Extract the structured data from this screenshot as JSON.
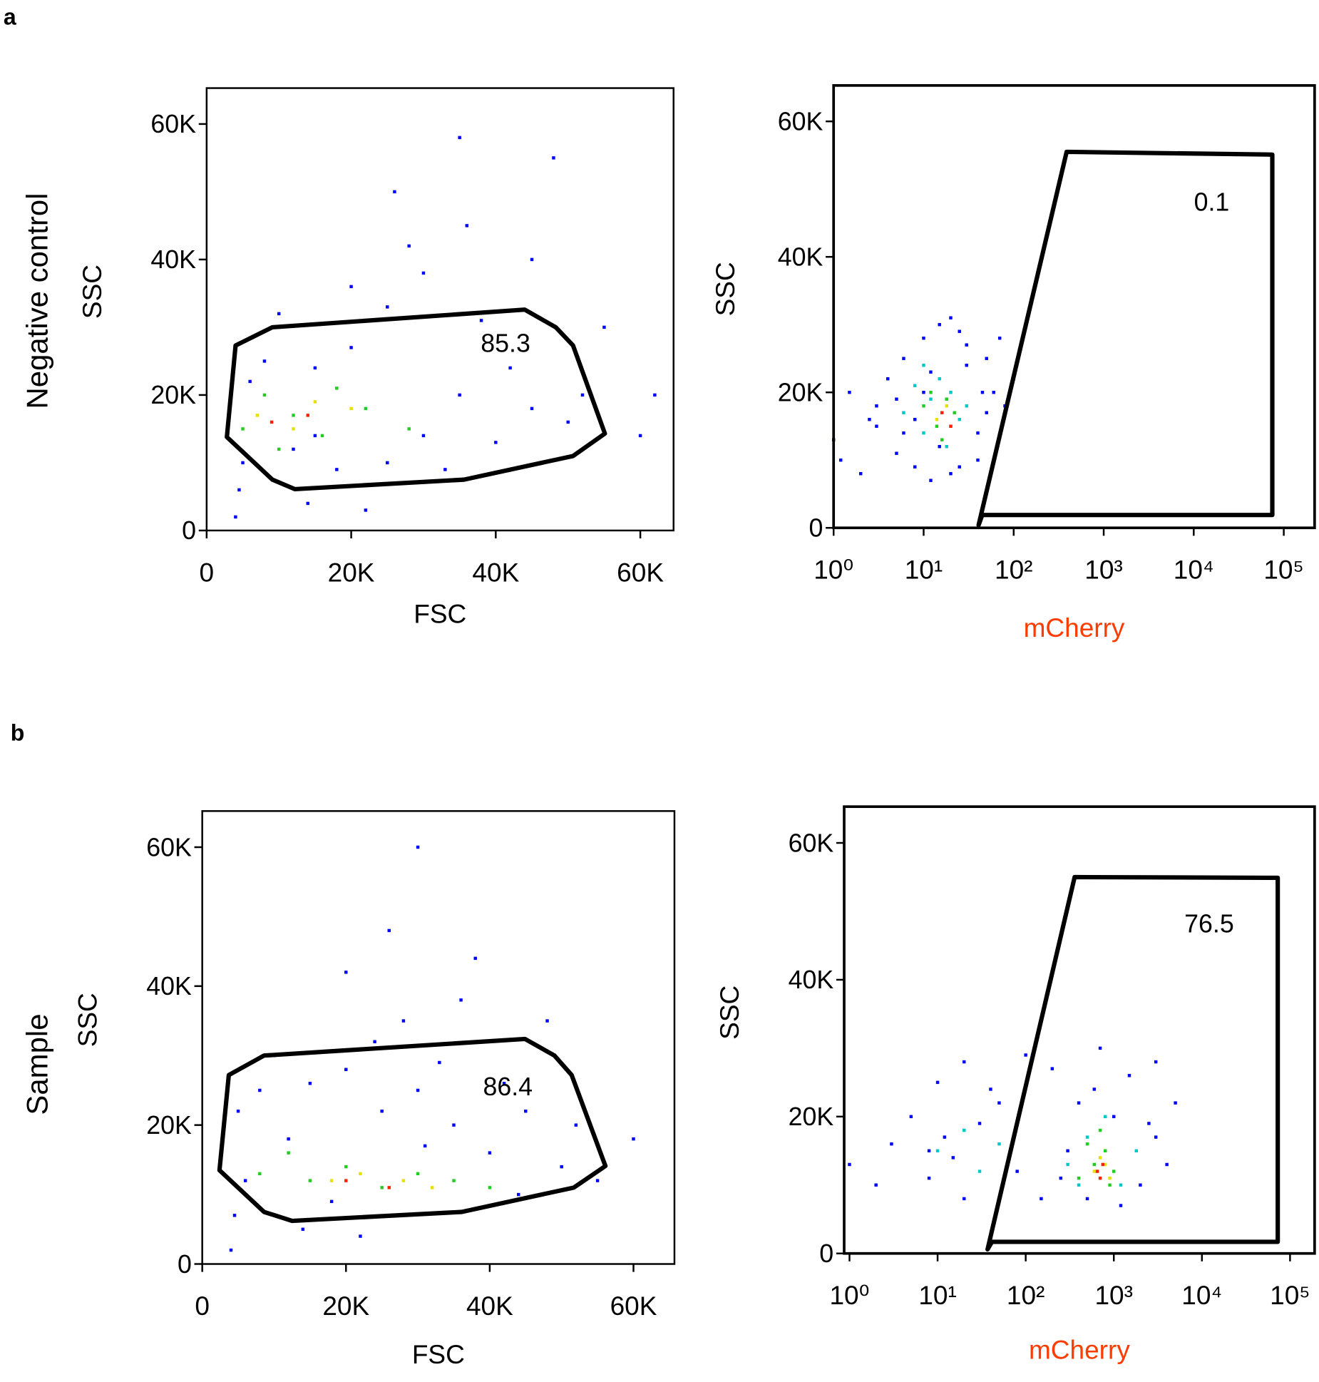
{
  "panels": [
    {
      "letter": "a",
      "row_label": "Negative control"
    },
    {
      "letter": "b",
      "row_label": "Sample"
    }
  ],
  "chart_data": [
    {
      "type": "scatter",
      "xlabel": "FSC",
      "ylabel": "SSC",
      "log_x": false,
      "xlim": [
        0,
        64600
      ],
      "ylim": [
        0,
        65300
      ],
      "xticks": [
        0,
        {
          "value": 20000,
          "label": "20K"
        },
        {
          "value": 40000,
          "label": "40K"
        },
        {
          "value": 60000,
          "label": "60K"
        }
      ],
      "yticks": [
        0,
        {
          "value": 20000,
          "label": "20K"
        },
        {
          "value": 40000,
          "label": "40K"
        },
        {
          "value": 60000,
          "label": "60K"
        }
      ],
      "series": [
        {
          "color": "#0000ff",
          "x": [
            4000,
            4500,
            5000,
            6000,
            8000,
            12000,
            15000,
            20000,
            25000,
            30000,
            35000,
            40000,
            45000,
            50000,
            20000,
            28000,
            38000,
            10000,
            18000,
            33000,
            42000,
            52000,
            26000,
            48000,
            30000,
            14000,
            22000,
            36000,
            55000,
            62000,
            45000,
            35000,
            25000,
            60000,
            15000
          ],
          "values": [
            2000,
            6000,
            10000,
            22000,
            25000,
            12000,
            24000,
            27000,
            10000,
            14000,
            20000,
            13000,
            18000,
            16000,
            36000,
            42000,
            31000,
            32000,
            9000,
            9000,
            24000,
            20000,
            50000,
            55000,
            38000,
            4000,
            3000,
            45000,
            30000,
            20000,
            40000,
            58000,
            33000,
            14000,
            14000
          ]
        },
        {
          "color": "#22cc22",
          "x": [
            5000,
            8000,
            12000,
            16000,
            22000,
            28000,
            10000,
            18000
          ],
          "values": [
            15000,
            20000,
            17000,
            14000,
            18000,
            15000,
            12000,
            21000
          ]
        },
        {
          "color": "#e8e000",
          "x": [
            7000,
            12000,
            20000,
            15000
          ],
          "values": [
            17000,
            15000,
            18000,
            19000
          ]
        },
        {
          "color": "#ff2000",
          "x": [
            9000,
            14000
          ],
          "values": [
            16000,
            17000
          ]
        }
      ],
      "gate": {
        "x": [
          2800,
          4000,
          9100,
          44000,
          48300,
          50700,
          55100,
          50700,
          35600,
          12200,
          9100
        ],
        "y": [
          13800,
          27300,
          30000,
          32600,
          30000,
          27300,
          14300,
          11000,
          7500,
          6100,
          7500
        ],
        "label": 85.3
      }
    },
    {
      "type": "scatter",
      "xlabel": "mCherry",
      "xlabel_color": "#ff3c00",
      "ylabel": "SSC",
      "log_x": true,
      "xlim": [
        1,
        220000
      ],
      "ylim": [
        0,
        65300
      ],
      "xticks": [
        {
          "value": 1,
          "label": "10⁰"
        },
        {
          "value": 10,
          "label": "10¹"
        },
        {
          "value": 100,
          "label": "10²"
        },
        {
          "value": 1000,
          "label": "10³"
        },
        {
          "value": 10000,
          "label": "10⁴"
        },
        {
          "value": 100000,
          "label": "10⁵"
        }
      ],
      "yticks": [
        0,
        {
          "value": 20000,
          "label": "20K"
        },
        {
          "value": 40000,
          "label": "40K"
        },
        {
          "value": 60000,
          "label": "60K"
        }
      ],
      "series": [
        {
          "color": "#0000ff",
          "x": [
            1,
            1.5,
            2,
            3,
            4,
            5,
            6,
            8,
            10,
            12,
            15,
            20,
            25,
            30,
            40,
            50,
            60,
            80,
            100,
            3,
            6,
            10,
            20,
            40,
            70,
            8,
            15,
            30,
            50,
            1.2,
            2.5,
            5,
            12,
            25,
            45
          ],
          "values": [
            13000,
            20000,
            8000,
            15000,
            22000,
            11000,
            25000,
            9000,
            28000,
            7000,
            30000,
            31000,
            29000,
            27000,
            10000,
            25000,
            20000,
            18000,
            22000,
            18000,
            14000,
            20000,
            8000,
            14000,
            28000,
            16000,
            12000,
            24000,
            17000,
            10000,
            16000,
            19000,
            23000,
            9000,
            20000
          ]
        },
        {
          "color": "#00c8c8",
          "x": [
            6,
            8,
            10,
            12,
            15,
            20,
            25,
            30,
            10,
            18
          ],
          "values": [
            17000,
            21000,
            14000,
            19000,
            22000,
            20000,
            16000,
            18000,
            24000,
            12000
          ]
        },
        {
          "color": "#22cc22",
          "x": [
            10,
            14,
            18,
            22,
            16,
            12
          ],
          "values": [
            18000,
            15000,
            19000,
            17000,
            13000,
            20000
          ]
        },
        {
          "color": "#e8e000",
          "x": [
            14,
            18,
            20
          ],
          "values": [
            16000,
            18000,
            15000
          ]
        },
        {
          "color": "#ff2000",
          "x": [
            16,
            20
          ],
          "values": [
            17000,
            15000
          ]
        }
      ],
      "gate": {
        "x": [
          40.8,
          387,
          74600,
          74600,
          44.7
        ],
        "y": [
          400,
          55500,
          55100,
          1900,
          1900
        ],
        "label": 0.1
      }
    },
    {
      "type": "scatter",
      "xlabel": "FSC",
      "ylabel": "SSC",
      "log_x": false,
      "xlim": [
        0,
        65700
      ],
      "ylim": [
        0,
        65200
      ],
      "xticks": [
        0,
        {
          "value": 20000,
          "label": "20K"
        },
        {
          "value": 40000,
          "label": "40K"
        },
        {
          "value": 60000,
          "label": "60K"
        }
      ],
      "yticks": [
        0,
        {
          "value": 20000,
          "label": "20K"
        },
        {
          "value": 40000,
          "label": "40K"
        },
        {
          "value": 60000,
          "label": "60K"
        }
      ],
      "series": [
        {
          "color": "#0000ff",
          "x": [
            4000,
            4500,
            5000,
            8000,
            12000,
            15000,
            20000,
            25000,
            30000,
            35000,
            40000,
            45000,
            50000,
            20000,
            28000,
            38000,
            10000,
            18000,
            33000,
            42000,
            52000,
            26000,
            48000,
            30000,
            14000,
            22000,
            36000,
            55000,
            44000,
            31000,
            24000,
            60000,
            6000
          ],
          "values": [
            2000,
            7000,
            22000,
            25000,
            18000,
            26000,
            28000,
            22000,
            25000,
            20000,
            16000,
            22000,
            14000,
            42000,
            35000,
            44000,
            30000,
            9000,
            29000,
            26000,
            20000,
            48000,
            35000,
            60000,
            5000,
            4000,
            38000,
            12000,
            10000,
            17000,
            32000,
            18000,
            12000
          ]
        },
        {
          "color": "#22cc22",
          "x": [
            8000,
            15000,
            20000,
            25000,
            30000,
            35000,
            12000,
            40000
          ],
          "values": [
            13000,
            12000,
            14000,
            11000,
            13000,
            12000,
            16000,
            11000
          ]
        },
        {
          "color": "#e8e000",
          "x": [
            18000,
            22000,
            28000,
            32000
          ],
          "values": [
            12000,
            13000,
            12000,
            11000
          ]
        },
        {
          "color": "#ff2000",
          "x": [
            20000,
            26000
          ],
          "values": [
            12000,
            11000
          ]
        }
      ],
      "gate": {
        "x": [
          2400,
          3700,
          8600,
          44900,
          49000,
          51400,
          56100,
          51700,
          36100,
          12500,
          8600
        ],
        "y": [
          13500,
          27200,
          30000,
          32400,
          30000,
          27200,
          14100,
          11000,
          7500,
          6200,
          7500
        ],
        "label": 86.4
      }
    },
    {
      "type": "scatter",
      "xlabel": "mCherry",
      "xlabel_color": "#ff3c00",
      "ylabel": "SSC",
      "log_x": true,
      "xlim": [
        0.87,
        190000
      ],
      "ylim": [
        0,
        65300
      ],
      "xticks": [
        {
          "value": 1,
          "label": "10⁰"
        },
        {
          "value": 10,
          "label": "10¹"
        },
        {
          "value": 100,
          "label": "10²"
        },
        {
          "value": 1000,
          "label": "10³"
        },
        {
          "value": 10000,
          "label": "10⁴"
        },
        {
          "value": 100000,
          "label": "10⁵"
        }
      ],
      "yticks": [
        0,
        {
          "value": 20000,
          "label": "20K"
        },
        {
          "value": 40000,
          "label": "40K"
        },
        {
          "value": 60000,
          "label": "60K"
        }
      ],
      "series": [
        {
          "color": "#0000ff",
          "x": [
            1,
            2,
            3,
            5,
            8,
            10,
            15,
            20,
            30,
            50,
            80,
            100,
            150,
            200,
            300,
            400,
            500,
            700,
            1000,
            1500,
            2000,
            3000,
            4000,
            5000,
            8,
            20,
            40,
            60,
            12,
            250,
            600,
            1200,
            2500,
            3000
          ],
          "values": [
            13000,
            10000,
            16000,
            20000,
            11000,
            25000,
            14000,
            28000,
            19000,
            22000,
            12000,
            29000,
            8000,
            27000,
            15000,
            22000,
            8000,
            30000,
            20000,
            26000,
            10000,
            17000,
            13000,
            22000,
            15000,
            8000,
            24000,
            12000,
            17000,
            11000,
            24000,
            7000,
            19000,
            28000
          ]
        },
        {
          "color": "#00c8c8",
          "x": [
            10,
            20,
            30,
            50,
            300,
            500,
            800,
            1200,
            1800,
            400
          ],
          "values": [
            15000,
            18000,
            12000,
            16000,
            13000,
            17000,
            20000,
            10000,
            15000,
            10000
          ]
        },
        {
          "color": "#22cc22",
          "x": [
            400,
            600,
            800,
            1000,
            500,
            900,
            700
          ],
          "values": [
            11000,
            13000,
            15000,
            12000,
            16000,
            10000,
            18000
          ]
        },
        {
          "color": "#e8e000",
          "x": [
            600,
            700,
            900,
            800
          ],
          "values": [
            12000,
            14000,
            11000,
            13000
          ]
        },
        {
          "color": "#ff2000",
          "x": [
            650,
            750,
            700
          ],
          "values": [
            12000,
            13000,
            11000
          ]
        }
      ],
      "gate": {
        "x": [
          36.9,
          359,
          72500,
          72500,
          41.4
        ],
        "y": [
          600,
          55000,
          54900,
          1700,
          1700
        ],
        "label": 76.5
      }
    }
  ]
}
